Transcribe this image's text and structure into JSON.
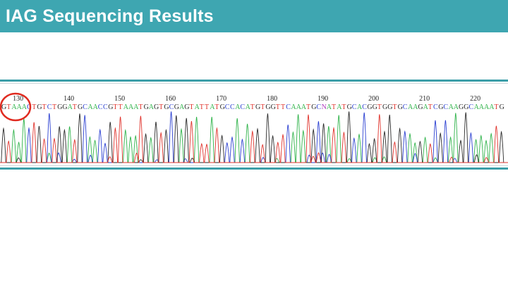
{
  "header": {
    "title": "IAG Sequencing Results",
    "background_color": "#3ea6b1",
    "text_color": "#ffffff"
  },
  "chromatogram": {
    "sequence": "GTAAACTGTCTGGATGCAACCGTTAAATGAGTGCGAGTATTATGCCACATGTGGTTCAAATGCNATATGCACGGTGGTGCAAGATCGCAAGGCAAAATG",
    "position_labels": [
      "130",
      "140",
      "150",
      "160",
      "170",
      "180",
      "190",
      "200",
      "210",
      "220"
    ],
    "base_colors": {
      "A": "#2fb34a",
      "C": "#2a3fd1",
      "G": "#2b2b2b",
      "T": "#e0332c",
      "N": "#b040c0"
    },
    "highlight": {
      "bases": "AAAC",
      "color": "#e02b20"
    },
    "frame_color": "#3b9ea8"
  }
}
